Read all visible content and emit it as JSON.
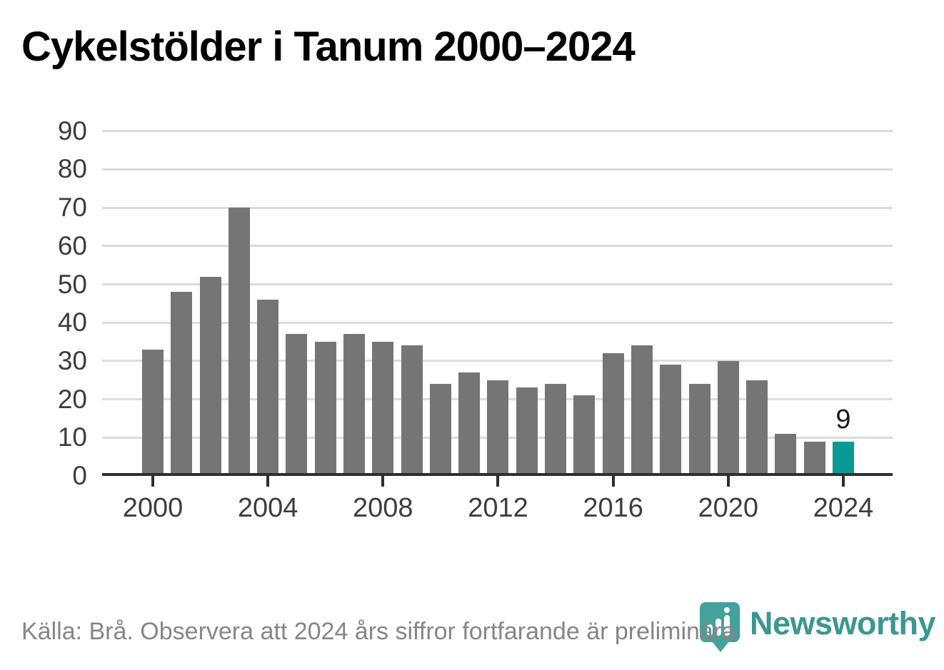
{
  "page": {
    "title": "Cykelstölder i Tanum 2000–2024"
  },
  "chart_data": {
    "type": "bar",
    "title": "Cykelstölder i Tanum 2000–2024",
    "x": [
      2000,
      2001,
      2002,
      2003,
      2004,
      2005,
      2006,
      2007,
      2008,
      2009,
      2010,
      2011,
      2012,
      2013,
      2014,
      2015,
      2016,
      2017,
      2018,
      2019,
      2020,
      2021,
      2022,
      2023,
      2024
    ],
    "values": [
      33,
      48,
      52,
      70,
      46,
      37,
      35,
      37,
      35,
      34,
      24,
      27,
      25,
      23,
      24,
      21,
      32,
      34,
      29,
      24,
      30,
      25,
      11,
      9,
      9
    ],
    "xlabel": "",
    "ylabel": "",
    "ylim": [
      0,
      90
    ],
    "yticks": [
      0,
      10,
      20,
      30,
      40,
      50,
      60,
      70,
      80,
      90
    ],
    "xticks": [
      2000,
      2004,
      2008,
      2012,
      2016,
      2020,
      2024
    ],
    "grid": "horizontal",
    "legend": "none",
    "bar_color": "#757575",
    "highlight_color": "#0b9a92",
    "highlight_index": 24,
    "highlight_label": "9"
  },
  "footer": {
    "source": "Källa: Brå. Observera att 2024 års siffror fortfarande är preliminära.",
    "brand_name": "Newsworthy",
    "brand_color": "#3a9792"
  }
}
